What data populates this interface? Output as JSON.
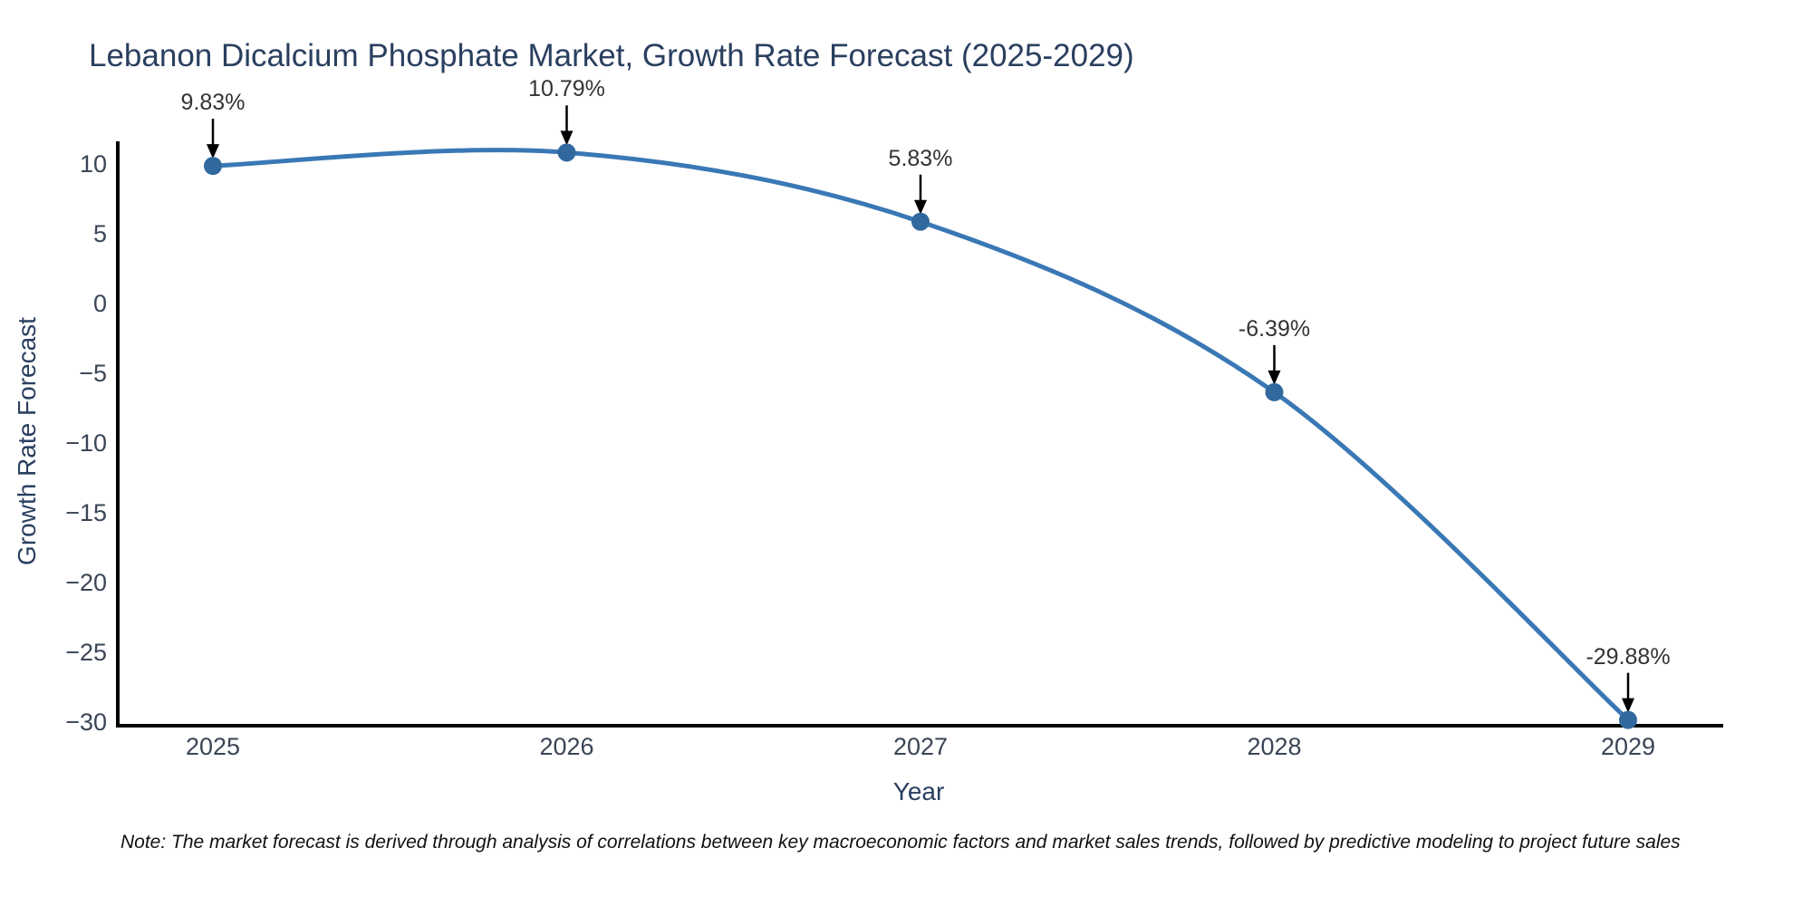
{
  "page": {
    "background": "#ffffff"
  },
  "chart_data": {
    "type": "line",
    "title": "Lebanon Dicalcium Phosphate Market, Growth Rate Forecast (2025-2029)",
    "xlabel": "Year",
    "ylabel": "Growth Rate Forecast",
    "categories": [
      "2025",
      "2026",
      "2027",
      "2028",
      "2029"
    ],
    "series": [
      {
        "name": "Growth Rate Forecast",
        "values": [
          9.83,
          10.79,
          5.83,
          -6.39,
          -29.88
        ]
      }
    ],
    "point_labels": [
      "9.83%",
      "10.79%",
      "5.83%",
      "-6.39%",
      "-29.88%"
    ],
    "yticks": [
      10,
      5,
      0,
      -5,
      -10,
      -15,
      -20,
      -25,
      -30
    ],
    "ytick_labels": [
      "10",
      "5",
      "0",
      "−5",
      "−10",
      "−15",
      "−20",
      "−25",
      "−30"
    ],
    "ylim": [
      -30.5,
      11.5
    ],
    "line_shape": "spline",
    "grid": "off",
    "legend": "none",
    "annotation_arrows": "down",
    "colors": {
      "line": "#3a78b5",
      "marker": "#31699e",
      "axis": "#000000",
      "title_text": "#2a3f5f",
      "tick_text": "#3a4556",
      "annotation_text": "#333333",
      "arrow": "#000000"
    },
    "note": "Note: The market forecast is derived through analysis of correlations between key macroeconomic factors and market sales trends, followed by predictive modeling to project future sales"
  }
}
